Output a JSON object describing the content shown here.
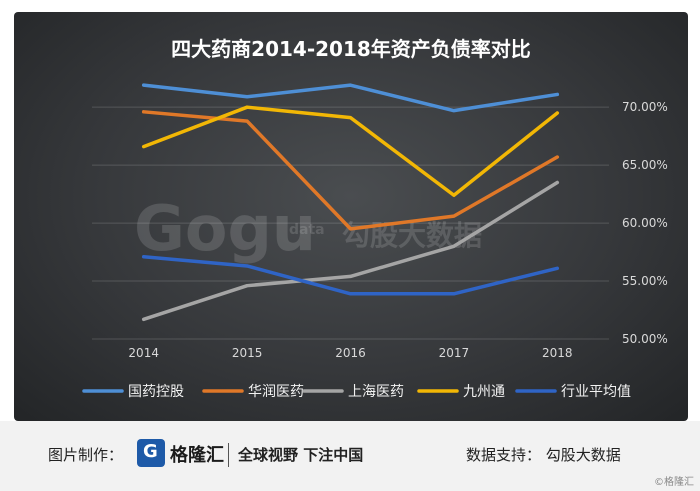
{
  "chart_data": {
    "type": "line",
    "title": "四大药商2014-2018年资产负债率对比",
    "categories": [
      "2014",
      "2015",
      "2016",
      "2017",
      "2018"
    ],
    "ylim": [
      50,
      72
    ],
    "yticks": [
      "50.00%",
      "55.00%",
      "60.00%",
      "65.00%",
      "70.00%"
    ],
    "ytick_values": [
      50,
      55,
      60,
      65,
      70
    ],
    "grid": true,
    "legend_position": "bottom",
    "series": [
      {
        "name": "国药控股",
        "color": "#4e8fd6",
        "values": [
          71.9,
          70.9,
          71.9,
          69.7,
          71.1
        ]
      },
      {
        "name": "华润医药",
        "color": "#e07828",
        "values": [
          69.6,
          68.8,
          59.5,
          60.6,
          65.7
        ]
      },
      {
        "name": "上海医药",
        "color": "#a5a5a5",
        "values": [
          51.7,
          54.6,
          55.4,
          58.0,
          63.5
        ]
      },
      {
        "name": "九州通",
        "color": "#f2b705",
        "values": [
          66.6,
          70.0,
          69.1,
          62.4,
          69.5
        ]
      },
      {
        "name": "行业平均值",
        "color": "#2f64c6",
        "values": [
          57.1,
          56.3,
          53.9,
          53.9,
          56.1
        ]
      }
    ]
  },
  "watermark": {
    "logo": "Gogu",
    "sub": "data",
    "cn": "勾股大数据"
  },
  "footer": {
    "label": "图片制作：",
    "brand_icon": "G",
    "brand": "格隆汇",
    "slogan": "全球视野 下注中国",
    "support": "数据支持：  勾股大数据",
    "corner": "©格隆汇"
  }
}
